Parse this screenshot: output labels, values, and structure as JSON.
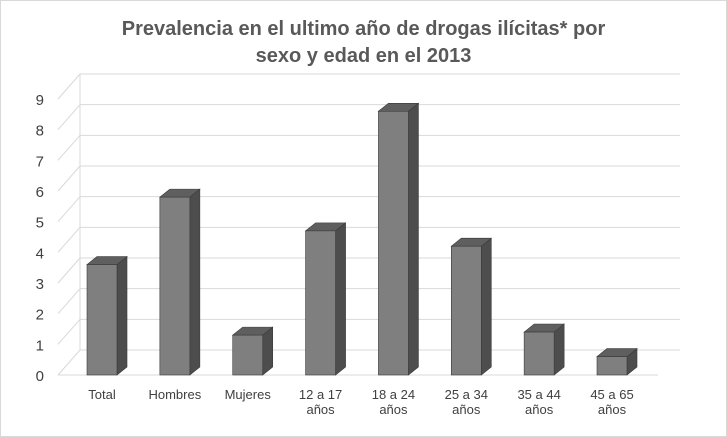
{
  "chart_data": {
    "type": "bar",
    "title_lines": [
      "Prevalencia en el ultimo año de drogas ilícitas* por",
      "sexo y edad en el 2013"
    ],
    "categories": [
      [
        "Total"
      ],
      [
        "Hombres"
      ],
      [
        "Mujeres"
      ],
      [
        "12 a 17",
        "años"
      ],
      [
        "18 a 24",
        "años"
      ],
      [
        "25 a 34",
        "años"
      ],
      [
        "35 a 44",
        "años"
      ],
      [
        "45 a 65",
        "años"
      ]
    ],
    "values": [
      3.6,
      5.8,
      1.3,
      4.7,
      8.6,
      4.2,
      1.4,
      0.6
    ],
    "ylim": [
      0,
      9
    ],
    "yticks": [
      "0",
      "1",
      "2",
      "3",
      "4",
      "5",
      "6",
      "7",
      "8",
      "9"
    ],
    "grid": true,
    "bar_style": "3d",
    "colors": {
      "bar_front": "#7f7f7f",
      "bar_side": "#4d4d4d",
      "bar_top": "#5f5f5f",
      "bar_edge": "#3a3a3a",
      "grid": "#d9d9d9"
    }
  }
}
